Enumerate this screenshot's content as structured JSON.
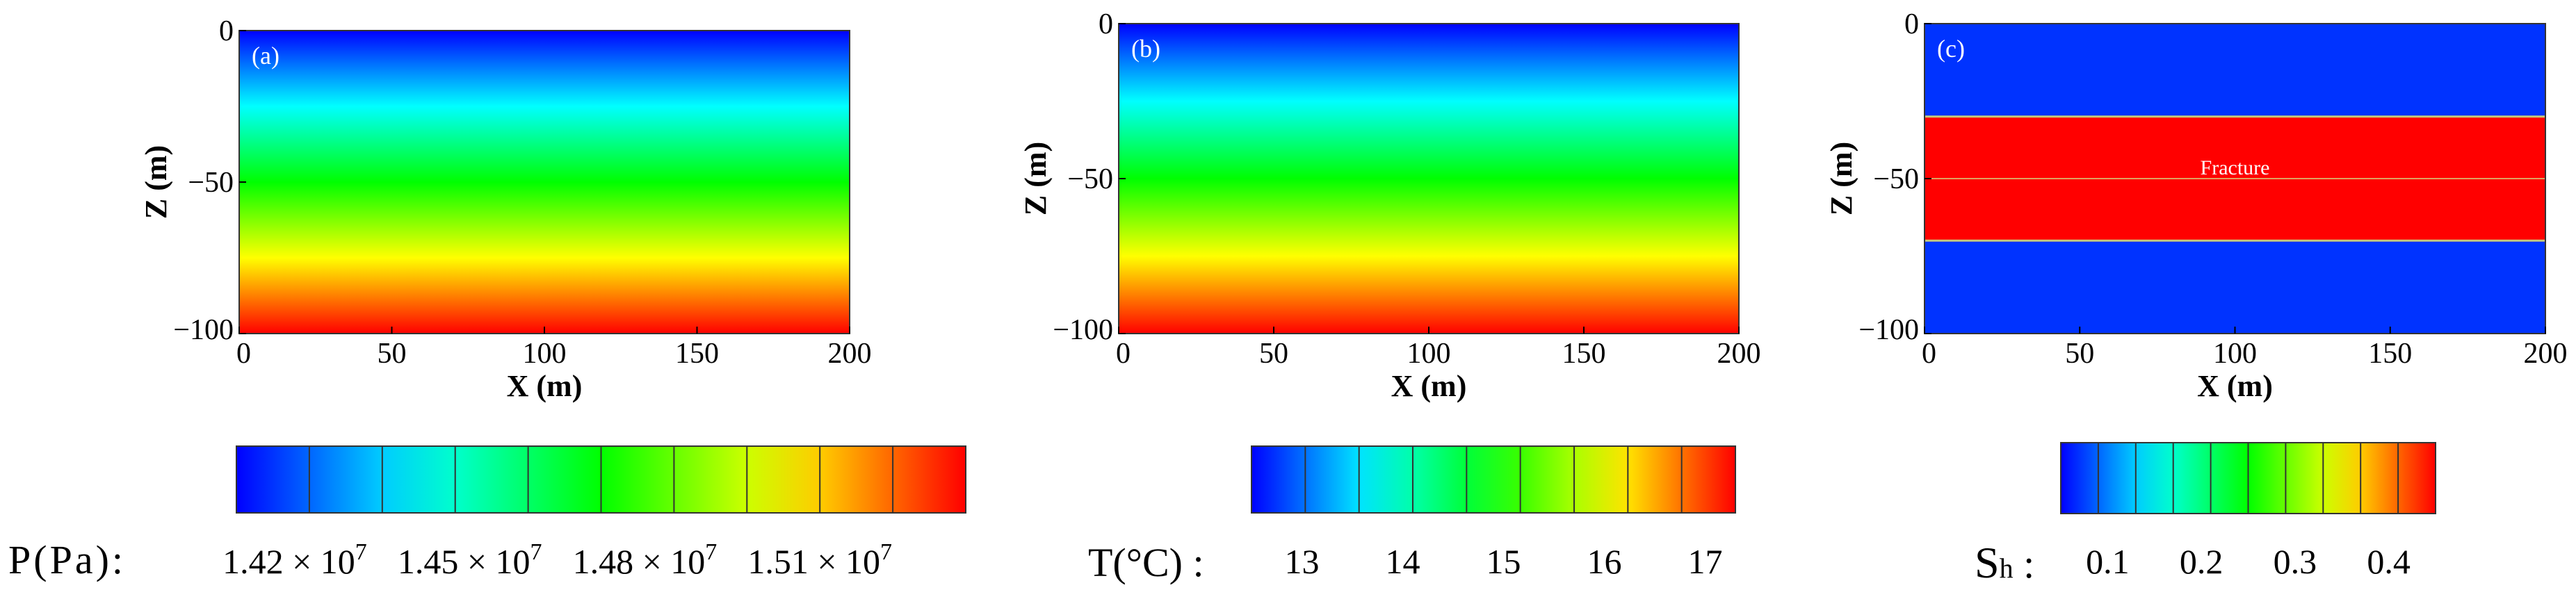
{
  "chart_data": [
    {
      "type": "heatmap",
      "panel_label": "(a)",
      "xlabel": "X (m)",
      "ylabel": "Z (m)",
      "xlim": [
        0,
        200
      ],
      "ylim": [
        -100,
        0
      ],
      "xticks": [
        "0",
        "50",
        "100",
        "150",
        "200"
      ],
      "yticks": [
        "0",
        "−50",
        "−100"
      ],
      "field": "pressure",
      "gradient": "vertical, blue at Z=0 to red at Z=-100",
      "colorbar": {
        "title": "P(Pa):",
        "min": 14100000,
        "max": 15350000,
        "bins": 10,
        "ticks": [
          {
            "mantissa": "1.42",
            "exponent": "7",
            "value": 14200000
          },
          {
            "mantissa": "1.45",
            "exponent": "7",
            "value": 14500000
          },
          {
            "mantissa": "1.48",
            "exponent": "7",
            "value": 14800000
          },
          {
            "mantissa": "1.51",
            "exponent": "7",
            "value": 15100000
          }
        ],
        "times": "× 10"
      }
    },
    {
      "type": "heatmap",
      "panel_label": "(b)",
      "xlabel": "X (m)",
      "ylabel": "Z (m)",
      "xlim": [
        0,
        200
      ],
      "ylim": [
        -100,
        0
      ],
      "xticks": [
        "0",
        "50",
        "100",
        "150",
        "200"
      ],
      "yticks": [
        "0",
        "−50",
        "−100"
      ],
      "field": "temperature",
      "gradient": "vertical, blue at Z=0 to red at Z=-100",
      "colorbar": {
        "title": "T(°C) :",
        "min": 12.5,
        "max": 17.3,
        "bins": 9,
        "ticks": [
          {
            "label": "13",
            "value": 13
          },
          {
            "label": "14",
            "value": 14
          },
          {
            "label": "15",
            "value": 15
          },
          {
            "label": "16",
            "value": 16
          },
          {
            "label": "17",
            "value": 17
          }
        ]
      }
    },
    {
      "type": "heatmap",
      "panel_label": "(c)",
      "xlabel": "X (m)",
      "ylabel": "Z (m)",
      "xlim": [
        0,
        200
      ],
      "ylim": [
        -100,
        0
      ],
      "xticks": [
        "0",
        "50",
        "100",
        "150",
        "200"
      ],
      "yticks": [
        "0",
        "−50",
        "−100"
      ],
      "field": "hydrate saturation",
      "annotation": "Fracture",
      "zones": [
        {
          "z_top": 0,
          "z_bottom": -30,
          "value": 0.05
        },
        {
          "z_top": -30,
          "z_bottom": -70,
          "value": 0.45
        },
        {
          "z_top": -70,
          "z_bottom": -100,
          "value": 0.05
        }
      ],
      "center_line_z": -50,
      "colorbar": {
        "title_main": "S",
        "title_sub": "h",
        "title_sep": " :",
        "min": 0.05,
        "max": 0.45,
        "bins": 10,
        "ticks": [
          {
            "label": "0.1",
            "value": 0.1
          },
          {
            "label": "0.2",
            "value": 0.2
          },
          {
            "label": "0.3",
            "value": 0.3
          },
          {
            "label": "0.4",
            "value": 0.4
          }
        ]
      }
    }
  ],
  "colors": {
    "jet_stops": [
      "#0000ff",
      "#0080ff",
      "#00ffff",
      "#00ff80",
      "#00ff00",
      "#80ff00",
      "#ffff00",
      "#ff8000",
      "#ff0000"
    ],
    "zone_blue": "#0033ff",
    "zone_red": "#ff0000",
    "boundary_line": "#c8c87a"
  }
}
